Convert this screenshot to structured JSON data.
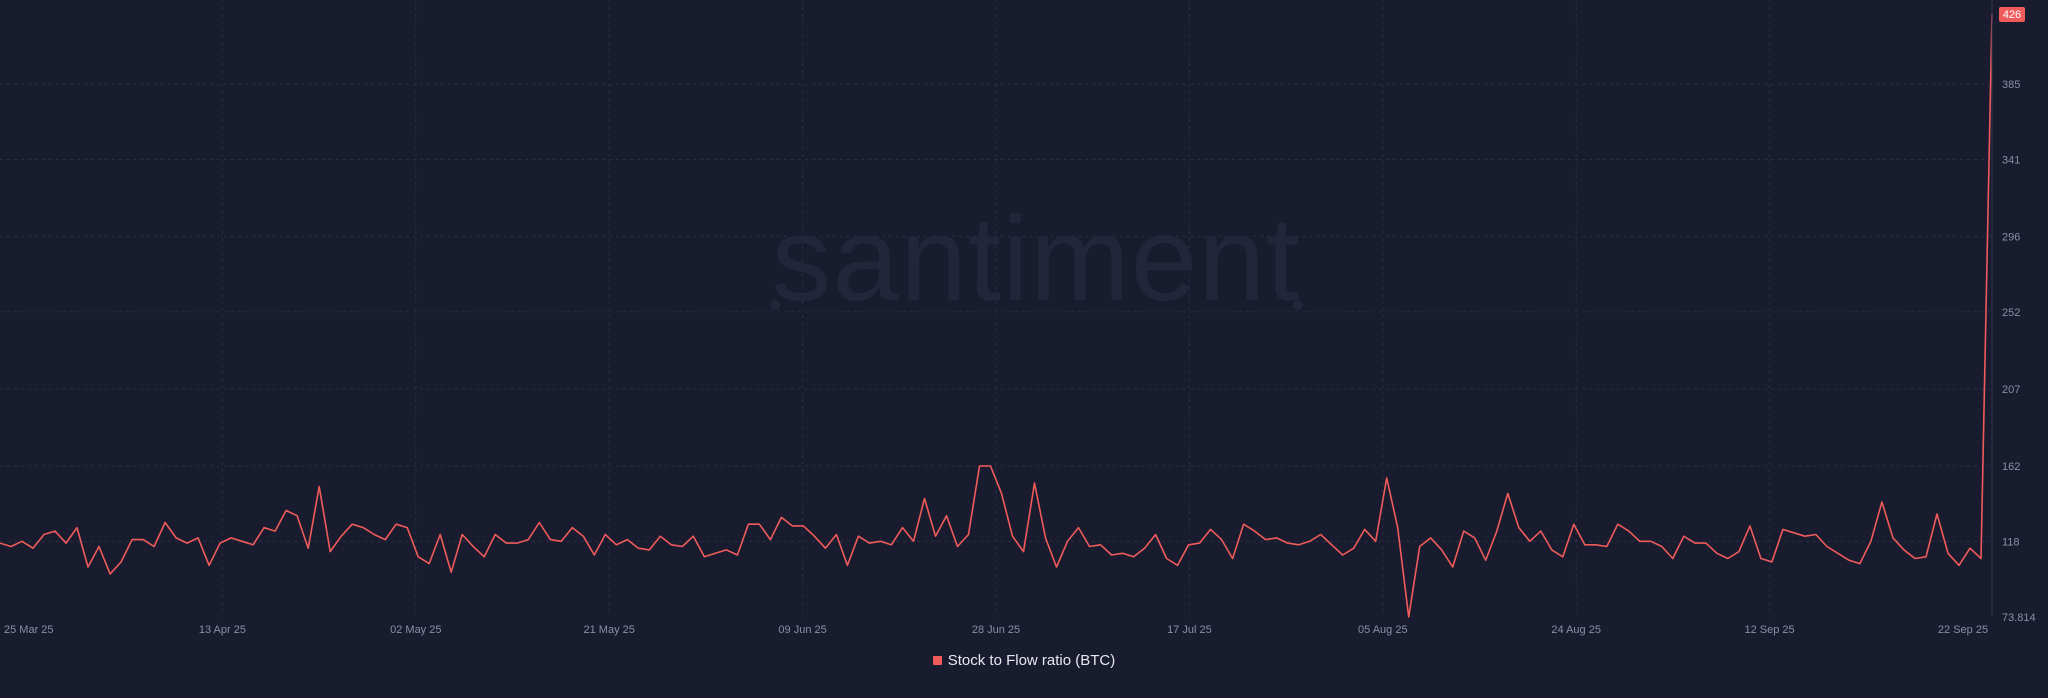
{
  "watermark": "santiment",
  "colors": {
    "background": "#191c2e",
    "series": "#ef5b5b",
    "grid": "#2a2e45",
    "tick_text": "#8a8fa8",
    "watermark": "#22263a"
  },
  "chart_data": {
    "type": "line",
    "title": "",
    "xlabel": "",
    "ylabel": "",
    "grid": true,
    "legend_position": "bottom-center",
    "x_ticks": [
      "25 Mar 25",
      "13 Apr 25",
      "02 May 25",
      "21 May 25",
      "09 Jun 25",
      "28 Jun 25",
      "17 Jul 25",
      "05 Aug 25",
      "24 Aug 25",
      "12 Sep 25",
      "22 Sep 25"
    ],
    "y_ticks": [
      "73.814",
      "118",
      "162",
      "207",
      "252",
      "296",
      "341",
      "385",
      "426"
    ],
    "ylim": [
      73.814,
      426
    ],
    "x_start": "2025-03-25",
    "x_end": "2025-09-22",
    "last_value_label": "426",
    "series": [
      {
        "name": "Stock to Flow ratio (BTC)",
        "x": [
          "2025-03-25",
          "2025-03-26",
          "2025-03-27",
          "2025-03-28",
          "2025-03-29",
          "2025-03-30",
          "2025-03-31",
          "2025-04-01",
          "2025-04-02",
          "2025-04-03",
          "2025-04-04",
          "2025-04-05",
          "2025-04-06",
          "2025-04-07",
          "2025-04-08",
          "2025-04-09",
          "2025-04-10",
          "2025-04-11",
          "2025-04-12",
          "2025-04-13",
          "2025-04-14",
          "2025-04-15",
          "2025-04-16",
          "2025-04-17",
          "2025-04-18",
          "2025-04-19",
          "2025-04-20",
          "2025-04-21",
          "2025-04-22",
          "2025-04-23",
          "2025-04-24",
          "2025-04-25",
          "2025-04-26",
          "2025-04-27",
          "2025-04-28",
          "2025-04-29",
          "2025-04-30",
          "2025-05-01",
          "2025-05-02",
          "2025-05-03",
          "2025-05-04",
          "2025-05-05",
          "2025-05-06",
          "2025-05-07",
          "2025-05-08",
          "2025-05-09",
          "2025-05-10",
          "2025-05-11",
          "2025-05-12",
          "2025-05-13",
          "2025-05-14",
          "2025-05-15",
          "2025-05-16",
          "2025-05-17",
          "2025-05-18",
          "2025-05-19",
          "2025-05-20",
          "2025-05-21",
          "2025-05-22",
          "2025-05-23",
          "2025-05-24",
          "2025-05-25",
          "2025-05-26",
          "2025-05-27",
          "2025-05-28",
          "2025-05-29",
          "2025-05-30",
          "2025-05-31",
          "2025-06-01",
          "2025-06-02",
          "2025-06-03",
          "2025-06-04",
          "2025-06-05",
          "2025-06-06",
          "2025-06-07",
          "2025-06-08",
          "2025-06-09",
          "2025-06-10",
          "2025-06-11",
          "2025-06-12",
          "2025-06-13",
          "2025-06-14",
          "2025-06-15",
          "2025-06-16",
          "2025-06-17",
          "2025-06-18",
          "2025-06-19",
          "2025-06-20",
          "2025-06-21",
          "2025-06-22",
          "2025-06-23",
          "2025-06-24",
          "2025-06-25",
          "2025-06-26",
          "2025-06-27",
          "2025-06-28",
          "2025-06-29",
          "2025-06-30",
          "2025-07-01",
          "2025-07-02",
          "2025-07-03",
          "2025-07-04",
          "2025-07-05",
          "2025-07-06",
          "2025-07-07",
          "2025-07-08",
          "2025-07-09",
          "2025-07-10",
          "2025-07-11",
          "2025-07-12",
          "2025-07-13",
          "2025-07-14",
          "2025-07-15",
          "2025-07-16",
          "2025-07-17",
          "2025-07-18",
          "2025-07-19",
          "2025-07-20",
          "2025-07-21",
          "2025-07-22",
          "2025-07-23",
          "2025-07-24",
          "2025-07-25",
          "2025-07-26",
          "2025-07-27",
          "2025-07-28",
          "2025-07-29",
          "2025-07-30",
          "2025-07-31",
          "2025-08-01",
          "2025-08-02",
          "2025-08-03",
          "2025-08-04",
          "2025-08-05",
          "2025-08-06",
          "2025-08-07",
          "2025-08-08",
          "2025-08-09",
          "2025-08-10",
          "2025-08-11",
          "2025-08-12",
          "2025-08-13",
          "2025-08-14",
          "2025-08-15",
          "2025-08-16",
          "2025-08-17",
          "2025-08-18",
          "2025-08-19",
          "2025-08-20",
          "2025-08-21",
          "2025-08-22",
          "2025-08-23",
          "2025-08-24",
          "2025-08-25",
          "2025-08-26",
          "2025-08-27",
          "2025-08-28",
          "2025-08-29",
          "2025-08-30",
          "2025-08-31",
          "2025-09-01",
          "2025-09-02",
          "2025-09-03",
          "2025-09-04",
          "2025-09-05",
          "2025-09-06",
          "2025-09-07",
          "2025-09-08",
          "2025-09-09",
          "2025-09-10",
          "2025-09-11",
          "2025-09-12",
          "2025-09-13",
          "2025-09-14",
          "2025-09-15",
          "2025-09-16",
          "2025-09-17",
          "2025-09-18",
          "2025-09-19",
          "2025-09-20",
          "2025-09-21",
          "2025-09-22"
        ],
        "values": [
          117,
          115,
          118,
          114,
          122,
          124,
          117,
          126,
          103,
          115,
          99,
          106,
          119,
          119,
          115,
          129,
          120,
          117,
          120,
          104,
          117,
          120,
          118,
          116,
          126,
          124,
          136,
          133,
          114,
          150,
          112,
          121,
          128,
          126,
          122,
          119,
          128,
          126,
          109,
          105,
          122,
          100,
          122,
          115,
          109,
          122,
          117,
          117,
          119,
          129,
          119,
          118,
          126,
          121,
          110,
          122,
          116,
          119,
          114,
          113,
          121,
          116,
          115,
          121,
          109,
          111,
          113,
          110,
          128,
          128,
          119,
          132,
          127,
          127,
          121,
          114,
          122,
          104,
          121,
          117,
          118,
          116,
          126,
          118,
          143,
          121,
          133,
          115,
          122,
          162,
          162,
          146,
          121,
          112,
          152,
          120,
          103,
          118,
          126,
          115,
          116,
          110,
          111,
          109,
          114,
          122,
          108,
          104,
          116,
          117,
          125,
          119,
          108,
          128,
          124,
          119,
          120,
          117,
          116,
          118,
          122,
          116,
          110,
          114,
          125,
          118,
          155,
          126,
          73.9,
          115,
          120,
          113,
          103,
          124,
          120,
          107,
          124,
          146,
          126,
          118,
          124,
          113,
          109,
          128,
          116,
          116,
          115,
          128,
          124,
          118,
          118,
          115,
          108,
          121,
          117,
          117,
          111,
          108,
          112,
          127,
          108,
          106,
          125,
          123,
          121,
          122,
          115,
          111,
          107,
          105,
          118,
          141,
          120,
          113,
          108,
          109,
          134,
          111,
          104,
          114,
          108,
          426
        ]
      }
    ]
  }
}
